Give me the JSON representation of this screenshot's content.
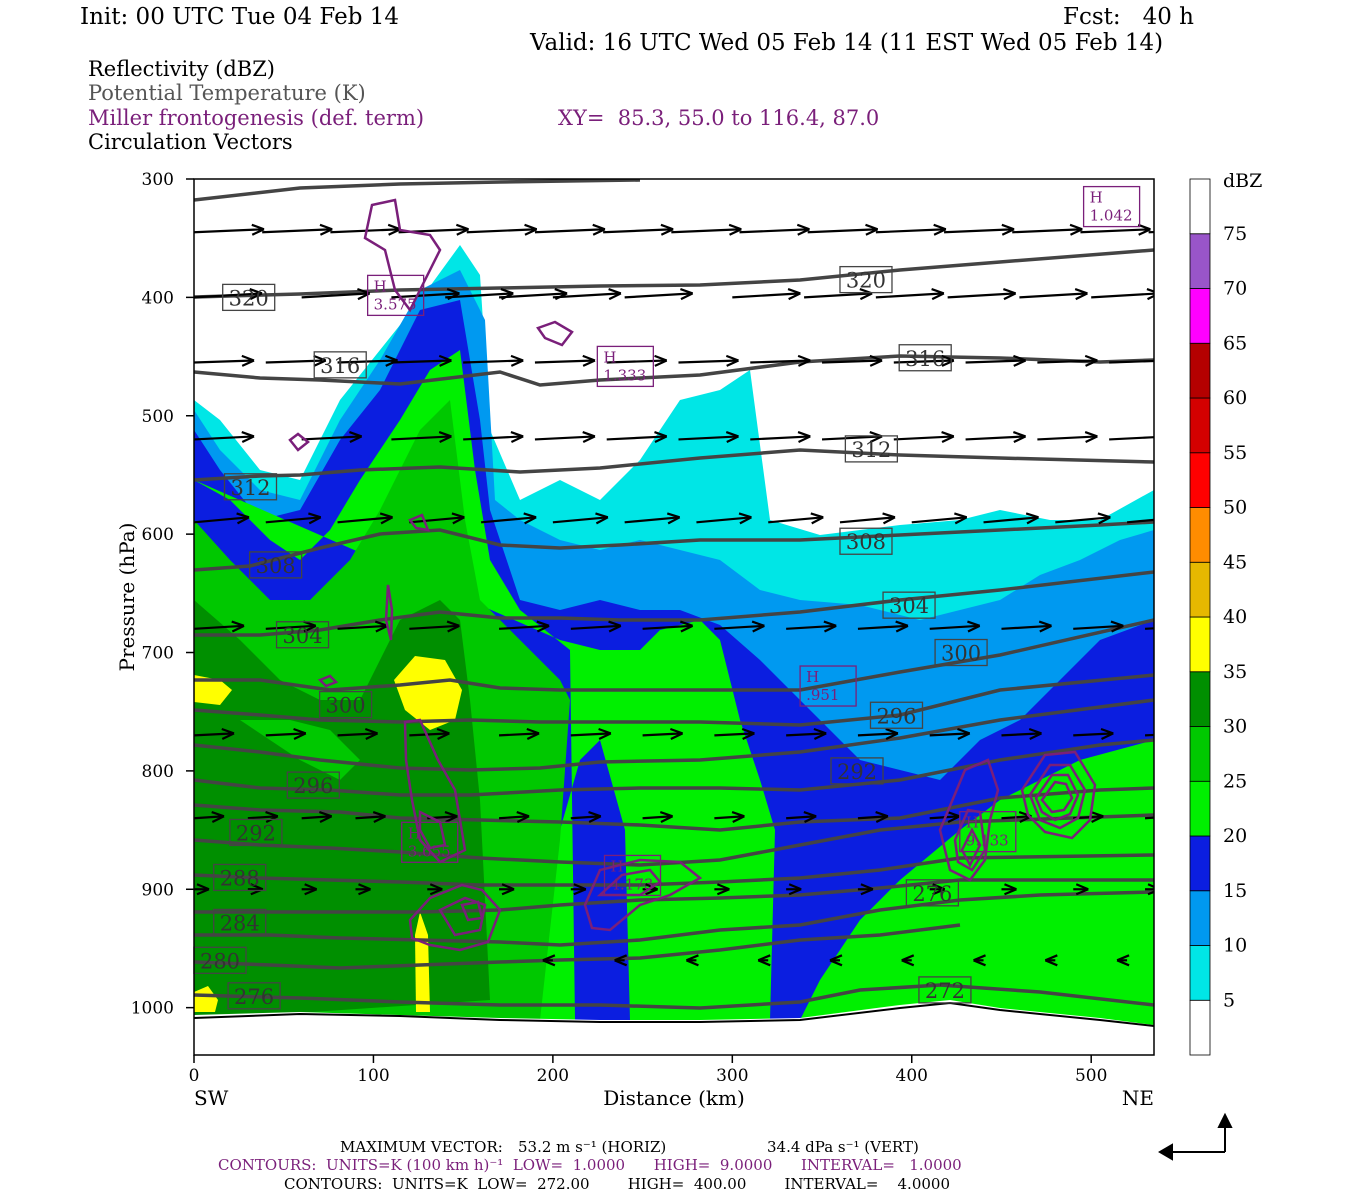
{
  "header": {
    "init": "Init: 00 UTC Tue 04 Feb 14",
    "fcst": "Fcst:   40 h",
    "valid": "Valid: 16 UTC Wed 05 Feb 14 (11 EST Wed 05 Feb 14)",
    "field1": "Reflectivity (dBZ)",
    "field2": "Potential Temperature (K)",
    "field3": "Miller frontogenesis (def. term)",
    "field4": "Circulation Vectors",
    "xy": "XY=  85.3, 55.0 to 116.4, 87.0"
  },
  "footer": {
    "maxvec_label": "MAXIMUM VECTOR:",
    "maxvec_horiz": "53.2 m s⁻¹ (HORIZ)",
    "maxvec_vert": "34.4 dPa s⁻¹ (VERT)",
    "contours1": "CONTOURS:  UNITS=K (100 km h)⁻¹  LOW=  1.0000      HIGH=  9.0000      INTERVAL=   1.0000",
    "contours2": "CONTOURS:  UNITS=K  LOW=  272.00        HIGH=  400.00        INTERVAL=    4.0000"
  },
  "colors": {
    "theta": "#444444",
    "fronto": "#7a1f7a",
    "vector": "#000000"
  },
  "chart_data": {
    "type": "heatmap",
    "title": "Reflectivity (dBZ)",
    "xlabel": "Distance (km)",
    "ylabel": "Pressure (hPa)",
    "xlim": [
      0,
      535
    ],
    "ylim": [
      1040,
      300
    ],
    "xticks": [
      0,
      100,
      200,
      300,
      400,
      500
    ],
    "yticks": [
      300,
      400,
      500,
      600,
      700,
      800,
      900,
      1000
    ],
    "x_end_labels": {
      "left": "SW",
      "right": "NE"
    },
    "colorbar": {
      "label": "dBZ",
      "ticks": [
        5,
        10,
        15,
        20,
        25,
        30,
        35,
        40,
        45,
        50,
        55,
        60,
        65,
        70,
        75
      ],
      "colors": [
        "#ffffff",
        "#00e6e6",
        "#0099f0",
        "#0b1ee0",
        "#00f000",
        "#00c800",
        "#008f00",
        "#ffff00",
        "#e6b800",
        "#ff8c00",
        "#ff0000",
        "#d40000",
        "#b40000",
        "#ff00ff",
        "#9955c9",
        "#ffffff"
      ]
    },
    "theta_labels": [
      {
        "value": "320",
        "x": 16,
        "p": 400
      },
      {
        "value": "320",
        "x": 360,
        "p": 385
      },
      {
        "value": "316",
        "x": 67,
        "p": 457
      },
      {
        "value": "316",
        "x": 393,
        "p": 451
      },
      {
        "value": "312",
        "x": 363,
        "p": 528
      },
      {
        "value": "312",
        "x": 17,
        "p": 560
      },
      {
        "value": "308",
        "x": 360,
        "p": 606
      },
      {
        "value": "308",
        "x": 31,
        "p": 626
      },
      {
        "value": "304",
        "x": 384,
        "p": 660
      },
      {
        "value": "304",
        "x": 46,
        "p": 685
      },
      {
        "value": "300",
        "x": 413,
        "p": 700
      },
      {
        "value": "300",
        "x": 70,
        "p": 744
      },
      {
        "value": "296",
        "x": 377,
        "p": 753
      },
      {
        "value": "296",
        "x": 52,
        "p": 812
      },
      {
        "value": "292",
        "x": 355,
        "p": 800
      },
      {
        "value": "292",
        "x": 20,
        "p": 852
      },
      {
        "value": "288",
        "x": 11,
        "p": 890
      },
      {
        "value": "284",
        "x": 11,
        "p": 928
      },
      {
        "value": "280",
        "x": 0,
        "p": 960
      },
      {
        "value": "276",
        "x": 397,
        "p": 903
      },
      {
        "value": "276",
        "x": 19,
        "p": 990
      },
      {
        "value": "272",
        "x": 404,
        "p": 985
      }
    ],
    "fronto_maxima": [
      {
        "label": "H",
        "value": "1.042",
        "x": 498,
        "p": 325
      },
      {
        "label": "H",
        "value": "3.575",
        "x": 99,
        "p": 400
      },
      {
        "label": "H",
        "value": "1.333",
        "x": 227,
        "p": 460
      },
      {
        "label": "H",
        "value": ".951",
        "x": 340,
        "p": 730
      },
      {
        "label": "H",
        "value": "3.655",
        "x": 118,
        "p": 862
      },
      {
        "label": "H",
        "value": "4.173",
        "x": 231,
        "p": 890
      },
      {
        "label": "H",
        "value": "9.133",
        "x": 429,
        "p": 853
      }
    ]
  }
}
